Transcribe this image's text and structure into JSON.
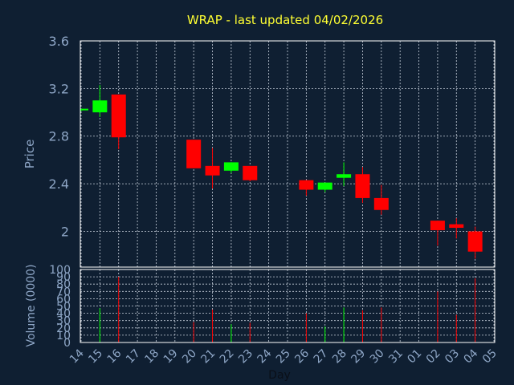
{
  "chart_data": {
    "type": "candlestick",
    "title": "WRAP - last updated 04/02/2026",
    "ylabel": "Price",
    "volume_ylabel": "Volume (0000)",
    "xlabel": "Day",
    "ylim": [
      1.7,
      3.6
    ],
    "yticks": [
      2,
      2.4,
      2.8,
      3.2,
      3.6
    ],
    "ytick_labels": [
      "2",
      "2.4",
      "2.8",
      "3.2",
      "3.6"
    ],
    "volume_ylim": [
      0,
      100
    ],
    "volume_yticks": [
      0,
      10,
      20,
      30,
      40,
      50,
      60,
      70,
      80,
      90,
      100
    ],
    "volume_ytick_labels": [
      "0",
      "10",
      "20",
      "30",
      "40",
      "50",
      "60",
      "70",
      "80",
      "90",
      "100"
    ],
    "days": [
      "14",
      "15",
      "16",
      "17",
      "18",
      "19",
      "20",
      "21",
      "22",
      "23",
      "24",
      "25",
      "26",
      "27",
      "28",
      "29",
      "30",
      "31",
      "01",
      "02",
      "03",
      "04",
      "05"
    ],
    "grid": true,
    "up_color": "#00ff00",
    "down_color": "#ff0000",
    "candles": [
      {
        "day": "14",
        "open": 3.02,
        "high": 3.03,
        "low": 3.01,
        "close": 3.03,
        "volume": 0
      },
      {
        "day": "15",
        "open": 3.0,
        "high": 3.23,
        "low": 2.96,
        "close": 3.1,
        "volume": 47
      },
      {
        "day": "16",
        "open": 3.15,
        "high": 3.15,
        "low": 2.69,
        "close": 2.79,
        "volume": 90
      },
      {
        "day": "20",
        "open": 2.77,
        "high": 2.77,
        "low": 2.53,
        "close": 2.53,
        "volume": 28
      },
      {
        "day": "21",
        "open": 2.55,
        "high": 2.7,
        "low": 2.36,
        "close": 2.47,
        "volume": 45
      },
      {
        "day": "22",
        "open": 2.51,
        "high": 2.58,
        "low": 2.49,
        "close": 2.58,
        "volume": 25
      },
      {
        "day": "23",
        "open": 2.55,
        "high": 2.55,
        "low": 2.42,
        "close": 2.43,
        "volume": 27
      },
      {
        "day": "26",
        "open": 2.43,
        "high": 2.43,
        "low": 2.3,
        "close": 2.35,
        "volume": 40
      },
      {
        "day": "27",
        "open": 2.35,
        "high": 2.41,
        "low": 2.33,
        "close": 2.41,
        "volume": 22
      },
      {
        "day": "28",
        "open": 2.45,
        "high": 2.58,
        "low": 2.38,
        "close": 2.48,
        "volume": 48
      },
      {
        "day": "29",
        "open": 2.48,
        "high": 2.54,
        "low": 2.24,
        "close": 2.28,
        "volume": 44
      },
      {
        "day": "30",
        "open": 2.28,
        "high": 2.39,
        "low": 2.14,
        "close": 2.18,
        "volume": 48
      },
      {
        "day": "02",
        "open": 2.09,
        "high": 2.09,
        "low": 1.88,
        "close": 2.01,
        "volume": 70
      },
      {
        "day": "03",
        "open": 2.06,
        "high": 2.11,
        "low": 1.94,
        "close": 2.03,
        "volume": 38
      },
      {
        "day": "04",
        "open": 2.0,
        "high": 2.04,
        "low": 1.77,
        "close": 1.83,
        "volume": 88
      }
    ]
  }
}
